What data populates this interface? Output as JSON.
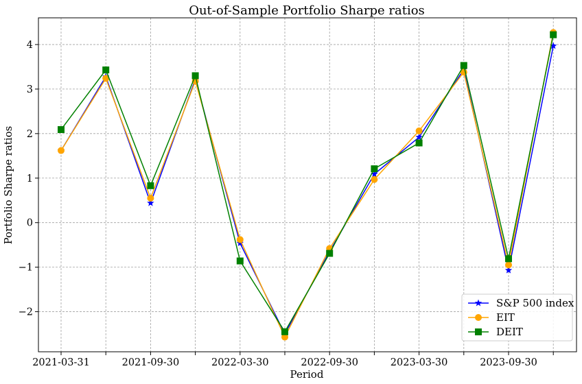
{
  "chart_data": {
    "type": "line",
    "title": "Out-of-Sample Portfolio Sharpe ratios",
    "xlabel": "Period",
    "ylabel": "Portfolio Sharpe ratios",
    "categories": [
      "2021-03-31",
      "",
      "2021-09-30",
      "",
      "2022-03-30",
      "",
      "2022-09-30",
      "",
      "2023-03-30",
      "",
      "2023-09-30",
      ""
    ],
    "ylim": [
      -2.9,
      4.6
    ],
    "yticks": [
      -2,
      -1,
      0,
      1,
      2,
      3,
      4
    ],
    "ytick_labels": [
      "−2",
      "−1",
      "0",
      "1",
      "2",
      "3",
      "4"
    ],
    "grid": true,
    "legend_position": "lower-right",
    "series": [
      {
        "name": "S&P 500 index",
        "color": "#0000ff",
        "marker": "star",
        "values": [
          1.62,
          3.28,
          0.44,
          3.22,
          -0.46,
          -2.5,
          -0.65,
          1.09,
          1.92,
          3.44,
          -1.07,
          3.97
        ]
      },
      {
        "name": "EIT",
        "color": "#ffa500",
        "marker": "circle",
        "values": [
          1.62,
          3.24,
          0.55,
          3.18,
          -0.38,
          -2.57,
          -0.58,
          0.97,
          2.06,
          3.38,
          -0.95,
          4.27
        ]
      },
      {
        "name": "DEIT",
        "color": "#008000",
        "marker": "square",
        "values": [
          2.09,
          3.43,
          0.83,
          3.3,
          -0.86,
          -2.45,
          -0.69,
          1.21,
          1.79,
          3.53,
          -0.81,
          4.22
        ]
      }
    ]
  }
}
